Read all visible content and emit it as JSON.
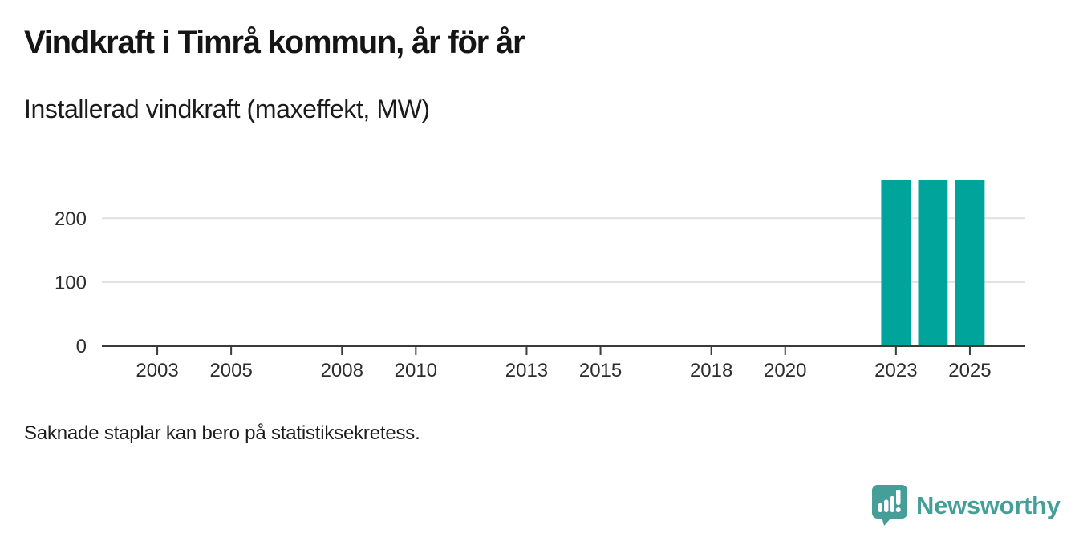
{
  "header": {
    "title": "Vindkraft i Timrå kommun, år för år",
    "subtitle": "Installerad vindkraft (maxeffekt, MW)"
  },
  "chart_data": {
    "type": "bar",
    "title": "Vindkraft i Timrå kommun, år för år",
    "subtitle": "Installerad vindkraft (maxeffekt, MW)",
    "unit": "MW",
    "x": [
      2023,
      2024,
      2025
    ],
    "values": [
      260,
      260,
      260
    ],
    "x_domain": [
      2002,
      2026
    ],
    "x_ticks": [
      2003,
      2005,
      2008,
      2010,
      2013,
      2015,
      2018,
      2020,
      2023,
      2025
    ],
    "ylim": [
      0,
      260
    ],
    "y_ticks": [
      0,
      100,
      200
    ],
    "grid": "horizontal",
    "legend": "none",
    "bar_color": "#00a49a",
    "axis_color": "#3a3a3a",
    "grid_color": "#e1e1e1",
    "tick_label_color": "#2d2d2d"
  },
  "footer": {
    "note": "Saknade staplar kan bero på statistiksekretess."
  },
  "branding": {
    "wordmark": "Newsworthy",
    "logo_icon": "newsworthy-speech-bubble-chart-icon",
    "brand_color": "#459e98"
  }
}
